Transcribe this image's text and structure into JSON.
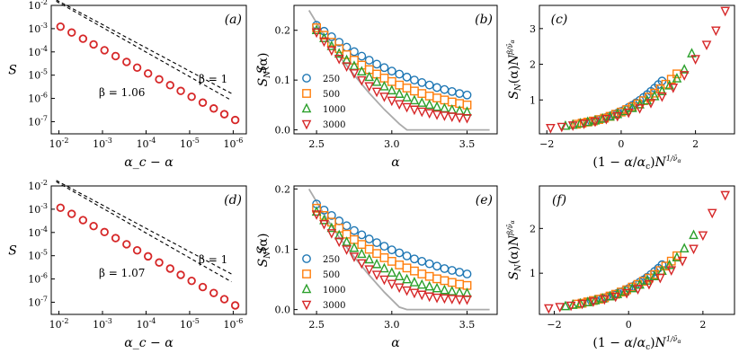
{
  "colors": {
    "s250": "#1f77b4",
    "s500": "#ff7f0e",
    "s1000": "#2ca02c",
    "s3000": "#d62728",
    "theory": "#aaaaaa",
    "red_marker": "#d62728"
  },
  "chart_data": [
    {
      "panel": "(a)",
      "type": "scatter",
      "xscale": "log-reversed",
      "yscale": "log",
      "xlabel": "α_c − α",
      "ylabel": "S",
      "xlim": [
        0.015,
        5e-07
      ],
      "ylim": [
        3e-08,
        0.01
      ],
      "xticks": [
        "10^-2",
        "10^-3",
        "10^-4",
        "10^-5",
        "10^-6"
      ],
      "yticks": [
        "10^-7",
        "10^-6",
        "10^-5",
        "10^-4",
        "10^-3",
        "10^-2"
      ],
      "x": [
        0.0092,
        0.0051,
        0.0028,
        0.0016,
        0.0009,
        0.0005,
        0.00028,
        0.00016,
        9e-05,
        5e-05,
        2.8e-05,
        1.6e-05,
        9e-06,
        5e-06,
        2.8e-06,
        1.6e-06,
        9e-07
      ],
      "y": [
        0.00122,
        0.00068,
        0.00037,
        0.00021,
        0.000118,
        6.6e-05,
        3.7e-05,
        2.1e-05,
        1.18e-05,
        6.6e-06,
        3.7e-06,
        2.1e-06,
        1.18e-06,
        6.6e-07,
        3.7e-07,
        2.1e-07,
        1.18e-07
      ],
      "fit_lines": [
        {
          "label": "β = 1",
          "exponent": 1,
          "prefactor": 22.0
        },
        {
          "label": "β = 1.06",
          "exponent": 1.06,
          "prefactor": 19.0
        }
      ]
    },
    {
      "panel": "(b)",
      "type": "scatter",
      "xlabel": "α",
      "ylabel": "S_N(α)",
      "xlim": [
        2.35,
        3.7
      ],
      "ylim": [
        -0.008,
        0.25
      ],
      "xticks": [
        2.5,
        3.0,
        3.5
      ],
      "yticks": [
        0.0,
        0.1,
        0.2
      ],
      "x": [
        2.5,
        2.55,
        2.6,
        2.65,
        2.7,
        2.75,
        2.8,
        2.85,
        2.9,
        2.95,
        3.0,
        3.05,
        3.1,
        3.15,
        3.2,
        3.25,
        3.3,
        3.35,
        3.4,
        3.45,
        3.5
      ],
      "series": [
        {
          "name": "250",
          "marker": "circle",
          "values": [
            0.21,
            0.198,
            0.187,
            0.176,
            0.166,
            0.157,
            0.148,
            0.14,
            0.132,
            0.125,
            0.118,
            0.112,
            0.106,
            0.1,
            0.095,
            0.09,
            0.085,
            0.081,
            0.077,
            0.073,
            0.07
          ]
        },
        {
          "name": "500",
          "marker": "square",
          "values": [
            0.205,
            0.19,
            0.176,
            0.163,
            0.151,
            0.14,
            0.13,
            0.121,
            0.112,
            0.104,
            0.097,
            0.09,
            0.084,
            0.078,
            0.073,
            0.068,
            0.064,
            0.06,
            0.056,
            0.053,
            0.05
          ]
        },
        {
          "name": "1000",
          "marker": "triangle-up",
          "values": [
            0.2,
            0.184,
            0.168,
            0.153,
            0.14,
            0.128,
            0.117,
            0.106,
            0.096,
            0.087,
            0.079,
            0.072,
            0.065,
            0.059,
            0.054,
            0.05,
            0.046,
            0.043,
            0.04,
            0.038,
            0.036
          ]
        },
        {
          "name": "3000",
          "marker": "triangle-down",
          "values": [
            0.196,
            0.178,
            0.16,
            0.143,
            0.128,
            0.114,
            0.1,
            0.088,
            0.077,
            0.067,
            0.059,
            0.052,
            0.046,
            0.041,
            0.037,
            0.034,
            0.031,
            0.029,
            0.027,
            0.025,
            0.024
          ]
        }
      ],
      "theory": {
        "x": [
          2.45,
          2.55,
          2.65,
          2.75,
          2.85,
          2.95,
          3.05,
          3.1,
          3.2,
          3.35,
          3.5,
          3.65
        ],
        "y": [
          0.24,
          0.19,
          0.148,
          0.11,
          0.074,
          0.041,
          0.012,
          0.0,
          0.0,
          0.0,
          0.0,
          0.0
        ]
      },
      "legend_title": ""
    },
    {
      "panel": "(c)",
      "type": "scatter",
      "xlabel": "(1 − α/α_c) N^{1/ν̄_α}",
      "ylabel": "S_N(α) N^{β/ν̄_α}",
      "xlim": [
        -2.2,
        3.05
      ],
      "ylim": [
        0.05,
        3.65
      ],
      "xticks": [
        -2,
        0,
        2
      ],
      "yticks": [
        1,
        2,
        3
      ],
      "series": [
        {
          "name": "250",
          "marker": "circle",
          "x": [
            -0.9,
            -0.8,
            -0.7,
            -0.6,
            -0.5,
            -0.4,
            -0.3,
            -0.2,
            -0.1,
            0.0,
            0.1,
            0.2,
            0.3,
            0.4,
            0.5,
            0.6,
            0.7,
            0.8,
            0.9,
            1.0,
            1.1
          ],
          "y": [
            0.38,
            0.4,
            0.42,
            0.45,
            0.48,
            0.51,
            0.55,
            0.59,
            0.63,
            0.68,
            0.73,
            0.79,
            0.85,
            0.92,
            0.99,
            1.07,
            1.15,
            1.24,
            1.33,
            1.43,
            1.53
          ]
        },
        {
          "name": "500",
          "marker": "square",
          "x": [
            -1.2,
            -1.05,
            -0.9,
            -0.75,
            -0.6,
            -0.45,
            -0.3,
            -0.15,
            0.0,
            0.15,
            0.3,
            0.45,
            0.6,
            0.75,
            0.9,
            1.05,
            1.2,
            1.35,
            1.5
          ],
          "y": [
            0.32,
            0.35,
            0.38,
            0.41,
            0.45,
            0.49,
            0.54,
            0.6,
            0.66,
            0.73,
            0.81,
            0.89,
            0.98,
            1.08,
            1.19,
            1.31,
            1.44,
            1.58,
            1.73
          ]
        },
        {
          "name": "1000",
          "marker": "triangle-up",
          "x": [
            -1.5,
            -1.3,
            -1.1,
            -0.9,
            -0.7,
            -0.5,
            -0.3,
            -0.1,
            0.1,
            0.3,
            0.5,
            0.7,
            0.9,
            1.1,
            1.3,
            1.5,
            1.7,
            1.9
          ],
          "y": [
            0.27,
            0.3,
            0.34,
            0.38,
            0.42,
            0.47,
            0.53,
            0.6,
            0.68,
            0.77,
            0.87,
            0.98,
            1.1,
            1.24,
            1.4,
            1.6,
            1.85,
            2.3
          ]
        },
        {
          "name": "3000",
          "marker": "triangle-down",
          "x": [
            -1.9,
            -1.6,
            -1.3,
            -1.0,
            -0.7,
            -0.4,
            -0.1,
            0.2,
            0.5,
            0.8,
            1.1,
            1.4,
            1.7,
            2.0,
            2.3,
            2.55,
            2.8
          ],
          "y": [
            0.22,
            0.25,
            0.29,
            0.34,
            0.4,
            0.47,
            0.55,
            0.65,
            0.77,
            0.92,
            1.1,
            1.35,
            1.7,
            2.15,
            2.55,
            2.95,
            3.5
          ]
        }
      ]
    },
    {
      "panel": "(d)",
      "type": "scatter",
      "xscale": "log-reversed",
      "yscale": "log",
      "xlabel": "α_c − α",
      "ylabel": "S",
      "xlim": [
        0.015,
        5e-07
      ],
      "ylim": [
        3e-08,
        0.01
      ],
      "xticks": [
        "10^-2",
        "10^-3",
        "10^-4",
        "10^-5",
        "10^-6"
      ],
      "yticks": [
        "10^-7",
        "10^-6",
        "10^-5",
        "10^-4",
        "10^-3",
        "10^-2"
      ],
      "x": [
        0.0092,
        0.0051,
        0.0028,
        0.0016,
        0.0009,
        0.0005,
        0.00028,
        0.00016,
        9e-05,
        5e-05,
        2.8e-05,
        1.6e-05,
        9e-06,
        5e-06,
        2.8e-06,
        1.6e-06,
        9e-07
      ],
      "y": [
        0.00115,
        0.00063,
        0.00034,
        0.000188,
        0.000104,
        5.7e-05,
        3.1e-05,
        1.7e-05,
        9.4e-06,
        5.1e-06,
        2.8e-06,
        1.5e-06,
        8.3e-07,
        4.5e-07,
        2.5e-07,
        1.35e-07,
        7.3e-08
      ],
      "fit_lines": [
        {
          "label": "β = 1",
          "exponent": 1,
          "prefactor": 22.0
        },
        {
          "label": "β = 1.07",
          "exponent": 1.07,
          "prefactor": 20.0
        }
      ]
    },
    {
      "panel": "(e)",
      "type": "scatter",
      "xlabel": "α",
      "ylabel": "S_N(α)",
      "xlim": [
        2.35,
        3.7
      ],
      "ylim": [
        -0.008,
        0.205
      ],
      "xticks": [
        2.5,
        3.0,
        3.5
      ],
      "yticks": [
        0.0,
        0.1,
        0.2
      ],
      "x": [
        2.5,
        2.55,
        2.6,
        2.65,
        2.7,
        2.75,
        2.8,
        2.85,
        2.9,
        2.95,
        3.0,
        3.05,
        3.1,
        3.15,
        3.2,
        3.25,
        3.3,
        3.35,
        3.4,
        3.45,
        3.5
      ],
      "series": [
        {
          "name": "250",
          "marker": "circle",
          "values": [
            0.175,
            0.165,
            0.156,
            0.147,
            0.139,
            0.131,
            0.124,
            0.117,
            0.111,
            0.105,
            0.099,
            0.094,
            0.089,
            0.084,
            0.08,
            0.076,
            0.072,
            0.068,
            0.065,
            0.062,
            0.059
          ]
        },
        {
          "name": "500",
          "marker": "square",
          "values": [
            0.168,
            0.156,
            0.145,
            0.135,
            0.125,
            0.116,
            0.108,
            0.1,
            0.093,
            0.086,
            0.08,
            0.074,
            0.069,
            0.064,
            0.059,
            0.055,
            0.051,
            0.048,
            0.045,
            0.042,
            0.04
          ]
        },
        {
          "name": "1000",
          "marker": "triangle-up",
          "values": [
            0.162,
            0.148,
            0.135,
            0.123,
            0.112,
            0.102,
            0.092,
            0.083,
            0.075,
            0.068,
            0.061,
            0.055,
            0.05,
            0.045,
            0.041,
            0.038,
            0.035,
            0.032,
            0.03,
            0.028,
            0.027
          ]
        },
        {
          "name": "3000",
          "marker": "triangle-down",
          "values": [
            0.158,
            0.142,
            0.127,
            0.113,
            0.1,
            0.088,
            0.077,
            0.067,
            0.058,
            0.05,
            0.043,
            0.037,
            0.032,
            0.028,
            0.025,
            0.022,
            0.02,
            0.019,
            0.018,
            0.017,
            0.017
          ]
        }
      ],
      "theory": {
        "x": [
          2.45,
          2.55,
          2.65,
          2.75,
          2.85,
          2.95,
          3.05,
          3.1,
          3.2,
          3.35,
          3.5,
          3.65
        ],
        "y": [
          0.2,
          0.158,
          0.12,
          0.087,
          0.057,
          0.029,
          0.004,
          0.0,
          0.0,
          0.0,
          0.0,
          0.0
        ]
      },
      "legend_title": ""
    },
    {
      "panel": "(f)",
      "type": "scatter",
      "xlabel": "(1 − α/α_c) N^{1/ν̄_α}",
      "ylabel": "S_N(α) N^{β/ν̄_α}",
      "xlim": [
        -2.4,
        2.85
      ],
      "ylim": [
        0.08,
        2.95
      ],
      "xticks": [
        -2,
        0,
        2
      ],
      "yticks": [
        1,
        2
      ],
      "series": [
        {
          "name": "250",
          "marker": "circle",
          "x": [
            -1.1,
            -1.0,
            -0.9,
            -0.8,
            -0.7,
            -0.6,
            -0.5,
            -0.4,
            -0.3,
            -0.2,
            -0.1,
            0.0,
            0.1,
            0.2,
            0.3,
            0.4,
            0.5,
            0.6,
            0.7,
            0.8,
            0.9
          ],
          "y": [
            0.36,
            0.38,
            0.4,
            0.42,
            0.44,
            0.46,
            0.49,
            0.52,
            0.55,
            0.58,
            0.62,
            0.66,
            0.7,
            0.75,
            0.8,
            0.85,
            0.91,
            0.97,
            1.04,
            1.11,
            1.19
          ]
        },
        {
          "name": "500",
          "marker": "square",
          "x": [
            -1.4,
            -1.25,
            -1.1,
            -0.95,
            -0.8,
            -0.65,
            -0.5,
            -0.35,
            -0.2,
            -0.05,
            0.1,
            0.25,
            0.4,
            0.55,
            0.7,
            0.85,
            1.0,
            1.15,
            1.3
          ],
          "y": [
            0.31,
            0.33,
            0.36,
            0.39,
            0.42,
            0.45,
            0.49,
            0.53,
            0.58,
            0.63,
            0.69,
            0.75,
            0.82,
            0.89,
            0.97,
            1.06,
            1.16,
            1.27,
            1.39
          ]
        },
        {
          "name": "1000",
          "marker": "triangle-up",
          "x": [
            -1.7,
            -1.5,
            -1.3,
            -1.1,
            -0.9,
            -0.7,
            -0.5,
            -0.3,
            -0.1,
            0.1,
            0.3,
            0.5,
            0.7,
            0.9,
            1.1,
            1.3,
            1.5,
            1.75
          ],
          "y": [
            0.26,
            0.29,
            0.32,
            0.35,
            0.39,
            0.43,
            0.48,
            0.53,
            0.59,
            0.66,
            0.74,
            0.83,
            0.93,
            1.05,
            1.18,
            1.35,
            1.55,
            1.85
          ]
        },
        {
          "name": "3000",
          "marker": "triangle-down",
          "x": [
            -2.15,
            -1.85,
            -1.55,
            -1.25,
            -0.95,
            -0.65,
            -0.35,
            -0.05,
            0.25,
            0.55,
            0.85,
            1.15,
            1.45,
            1.75,
            2.0,
            2.25,
            2.6
          ],
          "y": [
            0.22,
            0.25,
            0.28,
            0.32,
            0.37,
            0.42,
            0.48,
            0.56,
            0.65,
            0.76,
            0.9,
            1.07,
            1.28,
            1.55,
            1.85,
            2.35,
            2.75
          ]
        }
      ]
    }
  ]
}
